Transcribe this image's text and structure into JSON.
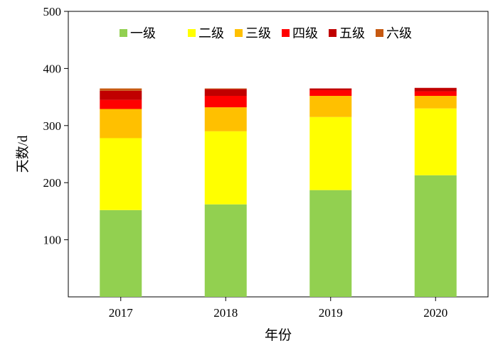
{
  "chart_data": {
    "type": "bar",
    "stacked": true,
    "categories": [
      "2017",
      "2018",
      "2019",
      "2020"
    ],
    "series": [
      {
        "name": "一级",
        "color": "#92D050",
        "values": [
          152,
          162,
          187,
          213
        ]
      },
      {
        "name": "二级",
        "color": "#FFFF00",
        "values": [
          126,
          128,
          128,
          117
        ]
      },
      {
        "name": "三级",
        "color": "#FFC000",
        "values": [
          51,
          42,
          37,
          22
        ]
      },
      {
        "name": "四级",
        "color": "#FF0000",
        "values": [
          16,
          20,
          10,
          8
        ]
      },
      {
        "name": "五级",
        "color": "#C00000",
        "values": [
          16,
          12,
          3,
          6
        ]
      },
      {
        "name": "六级",
        "color": "#C65911",
        "values": [
          4,
          1,
          0,
          0
        ]
      }
    ],
    "title": "",
    "xlabel": "年份",
    "ylabel": "天数/d",
    "ylim": [
      0,
      500
    ],
    "yticks": [
      100,
      200,
      300,
      400,
      500
    ],
    "grid": false,
    "legend_position": "top"
  }
}
